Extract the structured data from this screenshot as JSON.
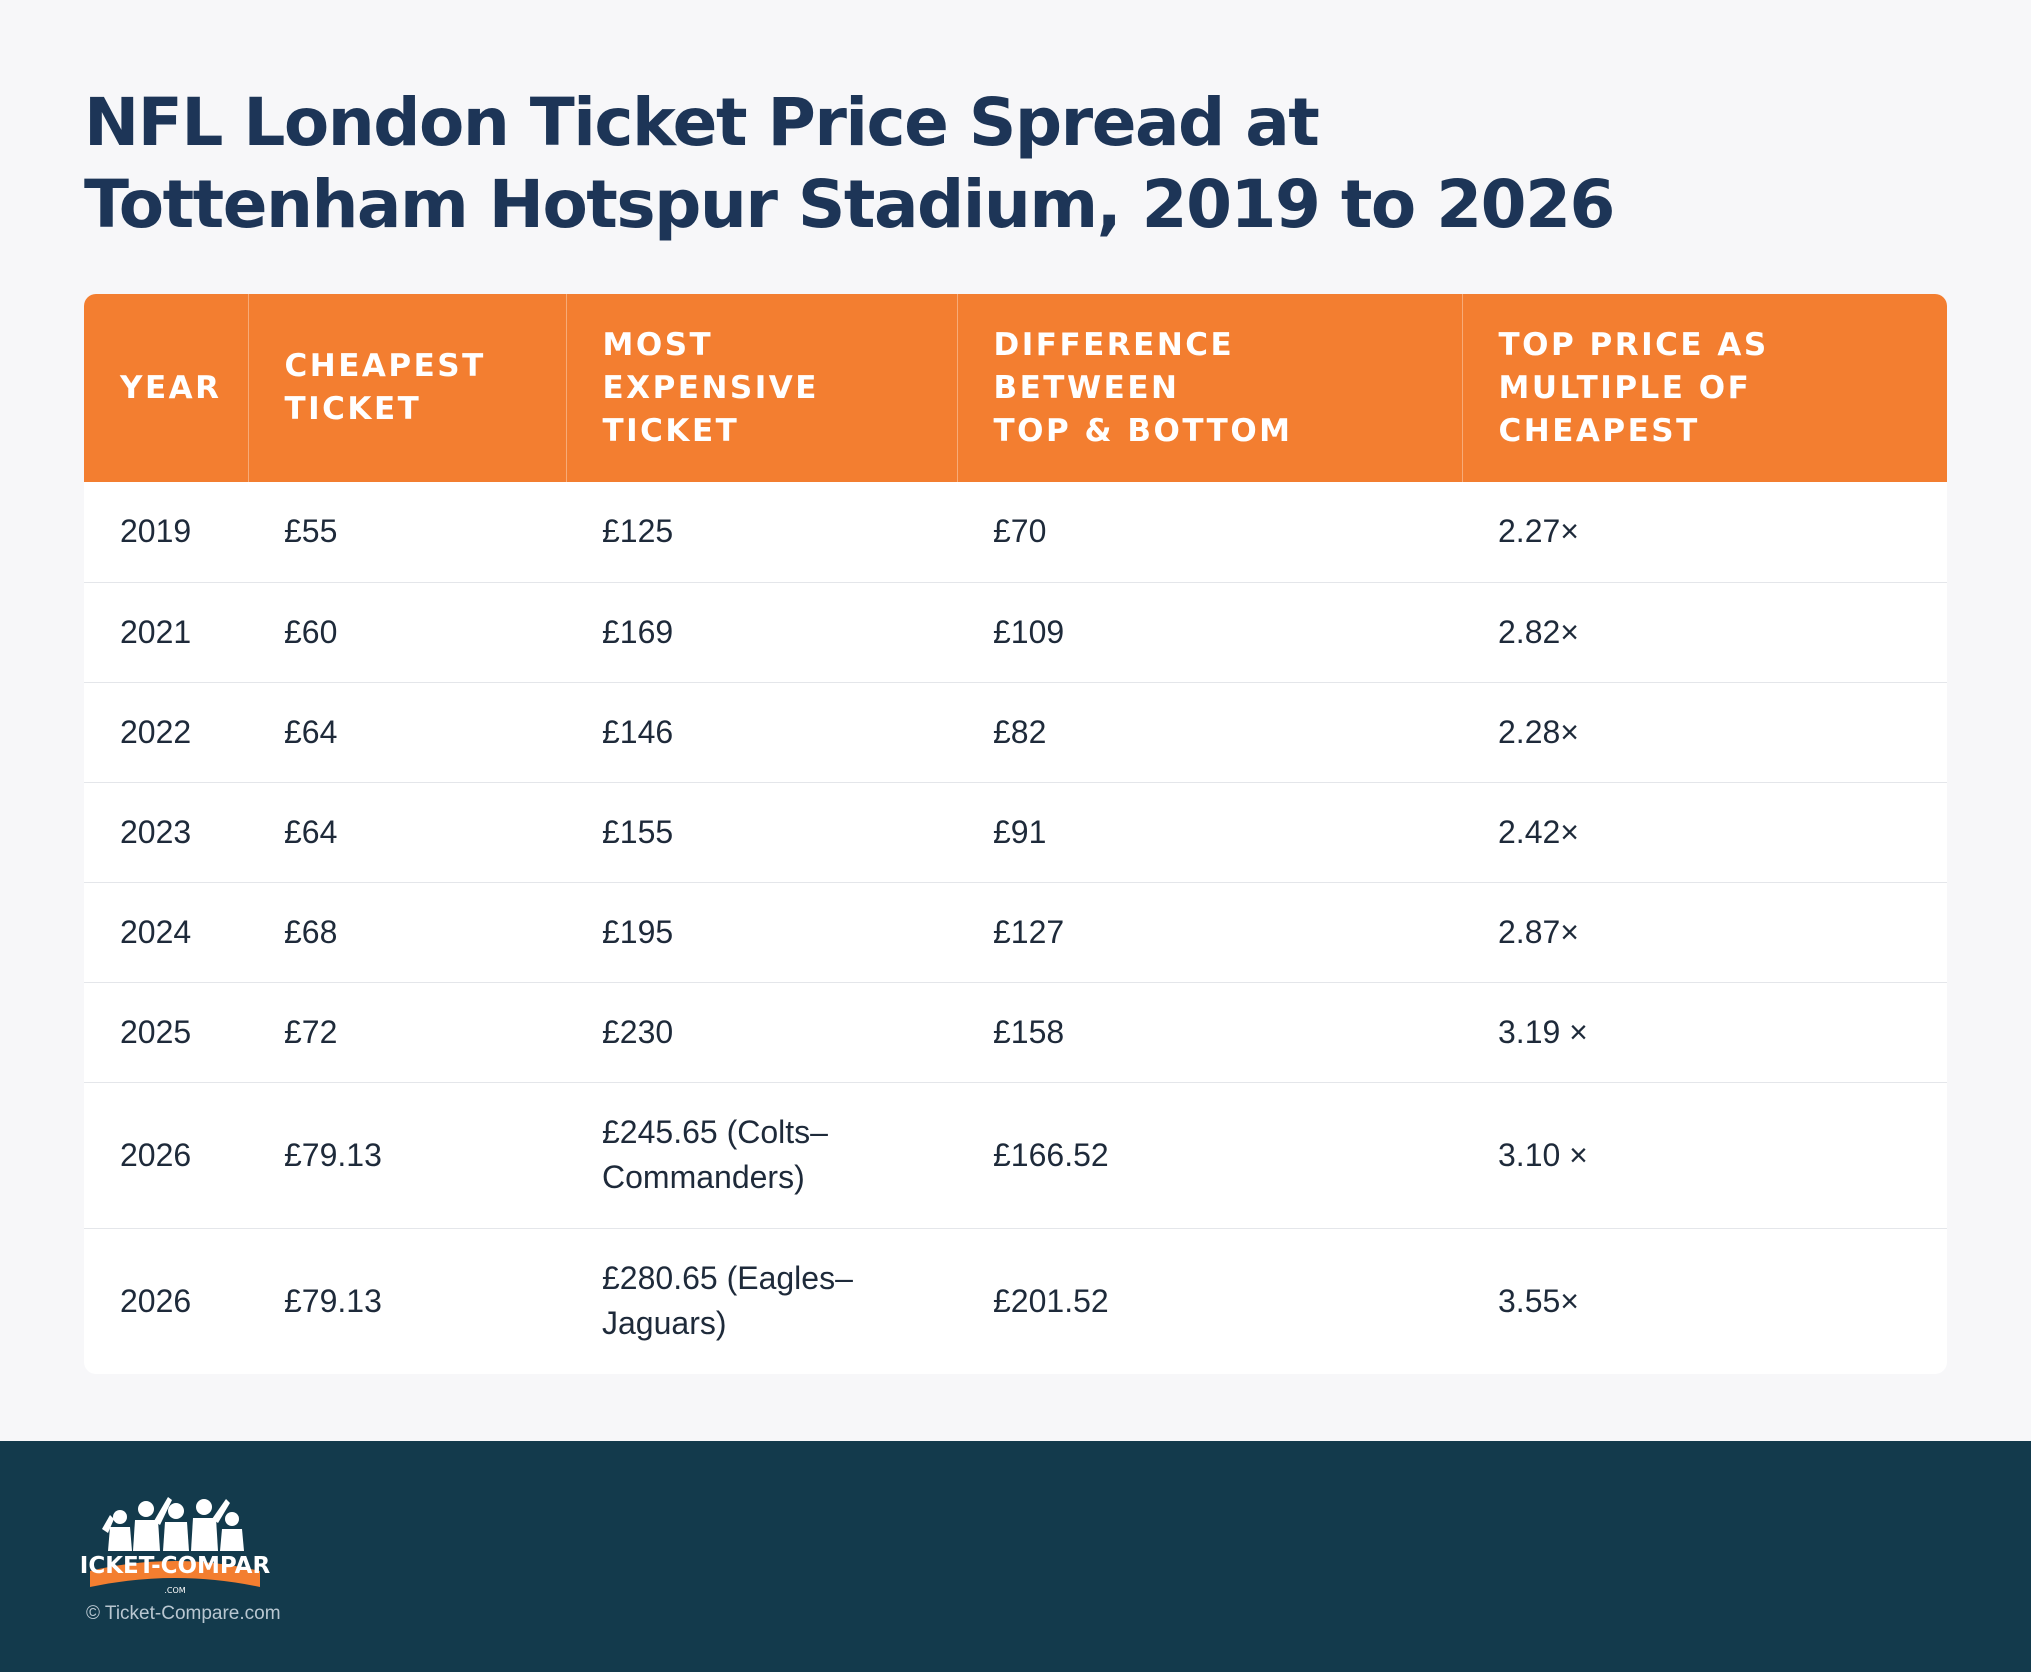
{
  "title_line1": "NFL London Ticket Price Spread at",
  "title_line2": "Tottenham Hotspur Stadium, 2019 to 2026",
  "headers": {
    "year": "YEAR",
    "cheapest_l1": "CHEAPEST",
    "cheapest_l2": "TICKET",
    "expensive_l1": "MOST EXPENSIVE",
    "expensive_l2": "TICKET",
    "difference_l1": "DIFFERENCE BETWEEN",
    "difference_l2": "TOP & BOTTOM",
    "multiple_l1": "TOP PRICE AS",
    "multiple_l2": "MULTIPLE OF",
    "multiple_l3": "CHEAPEST"
  },
  "rows": [
    {
      "year": "2019",
      "cheapest": "£55",
      "expensive_l1": "£125",
      "expensive_l2": "",
      "difference": "£70",
      "multiple": "2.27×"
    },
    {
      "year": "2021",
      "cheapest": "£60",
      "expensive_l1": "£169",
      "expensive_l2": "",
      "difference": "£109",
      "multiple": "2.82×"
    },
    {
      "year": "2022",
      "cheapest": "£64",
      "expensive_l1": "£146",
      "expensive_l2": "",
      "difference": "£82",
      "multiple": "2.28×"
    },
    {
      "year": "2023",
      "cheapest": "£64",
      "expensive_l1": "£155",
      "expensive_l2": "",
      "difference": "£91",
      "multiple": "2.42×"
    },
    {
      "year": "2024",
      "cheapest": "£68",
      "expensive_l1": "£195",
      "expensive_l2": "",
      "difference": "£127",
      "multiple": "2.87×"
    },
    {
      "year": "2025",
      "cheapest": "£72",
      "expensive_l1": "£230",
      "expensive_l2": "",
      "difference": "£158",
      "multiple": "3.19 ×"
    },
    {
      "year": "2026",
      "cheapest": "£79.13",
      "expensive_l1": "£245.65 (Colts–",
      "expensive_l2": "Commanders)",
      "difference": "£166.52",
      "multiple": "3.10 ×"
    },
    {
      "year": "2026",
      "cheapest": "£79.13",
      "expensive_l1": "£280.65 (Eagles–",
      "expensive_l2": "Jaguars)",
      "difference": "£201.52",
      "multiple": "3.55×"
    }
  ],
  "footer": {
    "logo_text": "TICKET-COMPARE",
    "logo_sub": ".COM",
    "copyright": "© Ticket-Compare.com"
  },
  "colors": {
    "title": "#1d3557",
    "header_bg": "#f37e30",
    "footer_bg": "#133a4c",
    "page_bg": "#f7f7f9"
  }
}
